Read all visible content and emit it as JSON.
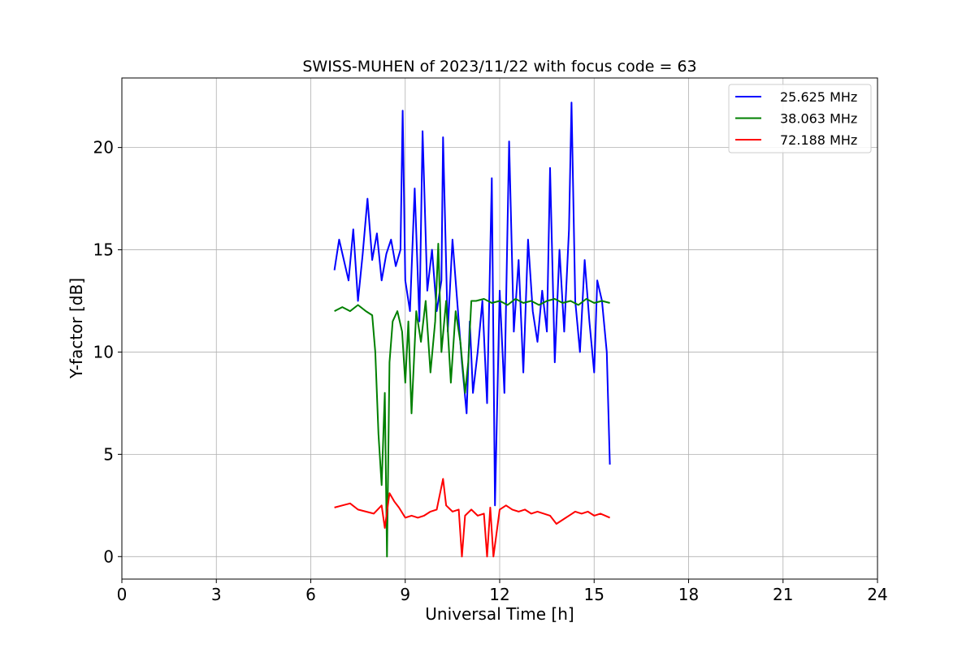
{
  "chart_data": {
    "type": "line",
    "title": "SWISS-MUHEN of 2023/11/22 with focus code = 63",
    "xlabel": "Universal Time [h]",
    "ylabel": "Y-factor [dB]",
    "xlim": [
      0,
      24
    ],
    "ylim": [
      -1.1,
      23.4
    ],
    "xticks": [
      0,
      3,
      6,
      9,
      12,
      15,
      18,
      21,
      24
    ],
    "yticks": [
      0,
      5,
      10,
      15,
      20
    ],
    "grid": true,
    "legend_position": "top-right",
    "series": [
      {
        "name": "25.625 MHz",
        "color": "#0000ff",
        "x": [
          6.75,
          6.9,
          7.05,
          7.2,
          7.35,
          7.5,
          7.65,
          7.8,
          7.95,
          8.1,
          8.25,
          8.4,
          8.55,
          8.7,
          8.85,
          8.92,
          9.0,
          9.15,
          9.3,
          9.45,
          9.55,
          9.7,
          9.85,
          10.0,
          10.15,
          10.2,
          10.35,
          10.5,
          10.65,
          10.8,
          10.95,
          11.05,
          11.15,
          11.3,
          11.45,
          11.6,
          11.75,
          11.85,
          12.0,
          12.15,
          12.3,
          12.45,
          12.6,
          12.75,
          12.9,
          13.05,
          13.2,
          13.35,
          13.5,
          13.6,
          13.75,
          13.9,
          14.05,
          14.2,
          14.28,
          14.4,
          14.55,
          14.7,
          14.85,
          15.0,
          15.1,
          15.25,
          15.4,
          15.5
        ],
        "y": [
          14.0,
          15.5,
          14.5,
          13.5,
          16.0,
          12.5,
          14.8,
          17.5,
          14.5,
          15.8,
          13.5,
          14.8,
          15.5,
          14.2,
          15.0,
          21.8,
          13.5,
          12.0,
          18.0,
          11.5,
          20.8,
          13.0,
          15.0,
          12.0,
          13.5,
          20.5,
          11.0,
          15.5,
          12.5,
          9.5,
          7.0,
          11.5,
          8.0,
          10.0,
          12.5,
          7.5,
          18.5,
          2.5,
          13.0,
          8.0,
          20.3,
          11.0,
          14.5,
          9.0,
          15.5,
          12.0,
          10.5,
          13.0,
          11.0,
          19.0,
          9.5,
          15.0,
          11.0,
          16.0,
          22.2,
          12.5,
          10.0,
          14.5,
          11.5,
          9.0,
          13.5,
          12.5,
          10.0,
          4.5
        ]
      },
      {
        "name": "38.063 MHz",
        "color": "#008000",
        "x": [
          6.75,
          7.0,
          7.25,
          7.5,
          7.75,
          7.95,
          8.05,
          8.15,
          8.25,
          8.35,
          8.42,
          8.5,
          8.6,
          8.75,
          8.9,
          9.0,
          9.1,
          9.2,
          9.35,
          9.5,
          9.65,
          9.8,
          9.95,
          10.05,
          10.15,
          10.3,
          10.45,
          10.6,
          10.75,
          10.9,
          11.0,
          11.1,
          11.25,
          11.5,
          11.75,
          12.0,
          12.25,
          12.5,
          12.75,
          13.0,
          13.25,
          13.5,
          13.75,
          14.0,
          14.25,
          14.5,
          14.75,
          15.0,
          15.25,
          15.5
        ],
        "y": [
          12.0,
          12.2,
          12.0,
          12.3,
          12.0,
          11.8,
          10.0,
          6.0,
          3.5,
          8.0,
          0.0,
          9.5,
          11.5,
          12.0,
          11.0,
          8.5,
          11.5,
          7.0,
          12.0,
          10.5,
          12.5,
          9.0,
          11.5,
          15.3,
          10.0,
          12.5,
          8.5,
          12.0,
          10.5,
          8.0,
          9.5,
          12.5,
          12.5,
          12.6,
          12.4,
          12.5,
          12.3,
          12.6,
          12.4,
          12.5,
          12.3,
          12.5,
          12.6,
          12.4,
          12.5,
          12.3,
          12.6,
          12.4,
          12.5,
          12.4
        ]
      },
      {
        "name": "72.188 MHz",
        "color": "#ff0000",
        "x": [
          6.75,
          7.0,
          7.25,
          7.5,
          7.75,
          8.0,
          8.25,
          8.35,
          8.5,
          8.65,
          8.8,
          9.0,
          9.2,
          9.4,
          9.6,
          9.8,
          10.0,
          10.2,
          10.3,
          10.5,
          10.7,
          10.8,
          10.9,
          11.1,
          11.3,
          11.5,
          11.6,
          11.7,
          11.8,
          12.0,
          12.2,
          12.4,
          12.6,
          12.8,
          13.0,
          13.2,
          13.4,
          13.6,
          13.8,
          14.0,
          14.2,
          14.4,
          14.6,
          14.8,
          15.0,
          15.2,
          15.5
        ],
        "y": [
          2.4,
          2.5,
          2.6,
          2.3,
          2.2,
          2.1,
          2.5,
          1.4,
          3.1,
          2.7,
          2.4,
          1.9,
          2.0,
          1.9,
          2.0,
          2.2,
          2.3,
          3.8,
          2.5,
          2.2,
          2.3,
          0.0,
          2.0,
          2.3,
          2.0,
          2.1,
          0.0,
          2.4,
          0.0,
          2.3,
          2.5,
          2.3,
          2.2,
          2.3,
          2.1,
          2.2,
          2.1,
          2.0,
          1.6,
          1.8,
          2.0,
          2.2,
          2.1,
          2.2,
          2.0,
          2.1,
          1.9
        ]
      }
    ]
  }
}
